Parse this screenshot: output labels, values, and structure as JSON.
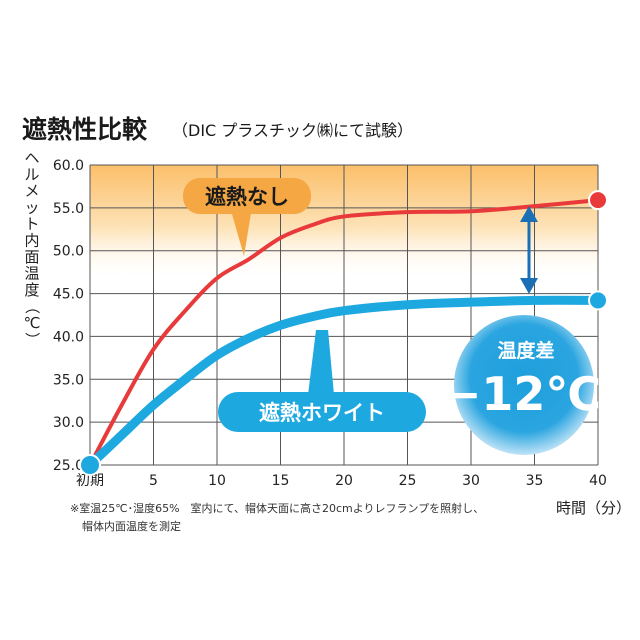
{
  "title": "遮熱性比較",
  "subtitle": "（DIC プラスチック㈱にて試験）",
  "chart_data": {
    "type": "line",
    "x": [
      0,
      5,
      10,
      15,
      20,
      25,
      30,
      35,
      40
    ],
    "x_tick_labels": [
      "初期",
      "5",
      "10",
      "15",
      "20",
      "25",
      "30",
      "35",
      "40"
    ],
    "xlabel": "時間（分）",
    "ylabel": "ヘルメット内面温度（℃）",
    "ylim": [
      25.0,
      60.0
    ],
    "xlim": [
      0,
      40
    ],
    "y_ticks": [
      "25.0",
      "30.0",
      "35.0",
      "40.0",
      "45.0",
      "50.0",
      "55.0",
      "60.0"
    ],
    "grid": true,
    "series": [
      {
        "name": "遮熱なし",
        "color": "#e83a3a",
        "x": [
          0,
          2.5,
          5,
          7.5,
          10,
          12.5,
          15,
          17.5,
          20,
          25,
          30,
          35,
          40
        ],
        "values": [
          25.0,
          32.0,
          38.5,
          43.0,
          46.8,
          49.0,
          51.5,
          53.0,
          54.0,
          54.5,
          54.6,
          55.2,
          55.9
        ]
      },
      {
        "name": "遮熱ホワイト",
        "color": "#1ea8e0",
        "x": [
          0,
          2.5,
          5,
          7.5,
          10,
          12.5,
          15,
          17.5,
          20,
          25,
          30,
          35,
          40
        ],
        "values": [
          25.0,
          28.5,
          32.0,
          35.0,
          37.8,
          39.8,
          41.3,
          42.3,
          43.0,
          43.7,
          44.0,
          44.2,
          44.2
        ]
      }
    ],
    "annotations": {
      "difference_label": "温度差",
      "difference_value": "−12℃"
    }
  },
  "footnote": {
    "line1": "※室温25℃･湿度65%　室内にて、帽体天面に高さ20cmよりレフランプを照射し、",
    "line2": "帽体内面温度を測定"
  }
}
